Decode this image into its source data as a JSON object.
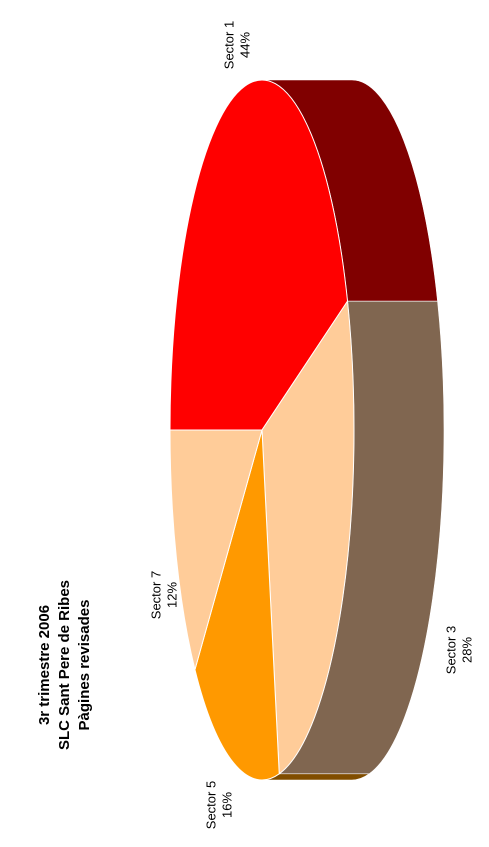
{
  "chart_data": {
    "type": "pie",
    "title": [
      "3r trimestre 2006",
      "SLC Sant Pere de Ribes",
      "Pàgines revisades"
    ],
    "categories": [
      "Sector 1",
      "Sector 3",
      "Sector 5",
      "Sector 7"
    ],
    "values": [
      44,
      28,
      16,
      12
    ],
    "value_labels": [
      "44%",
      "28%",
      "16%",
      "12%"
    ],
    "colors": [
      "#ff0000",
      "#ffcc99",
      "#ff9900",
      "#ffcc99"
    ],
    "depth_colors": [
      "#800000",
      "#806650",
      "#804d00",
      "#806650"
    ]
  }
}
